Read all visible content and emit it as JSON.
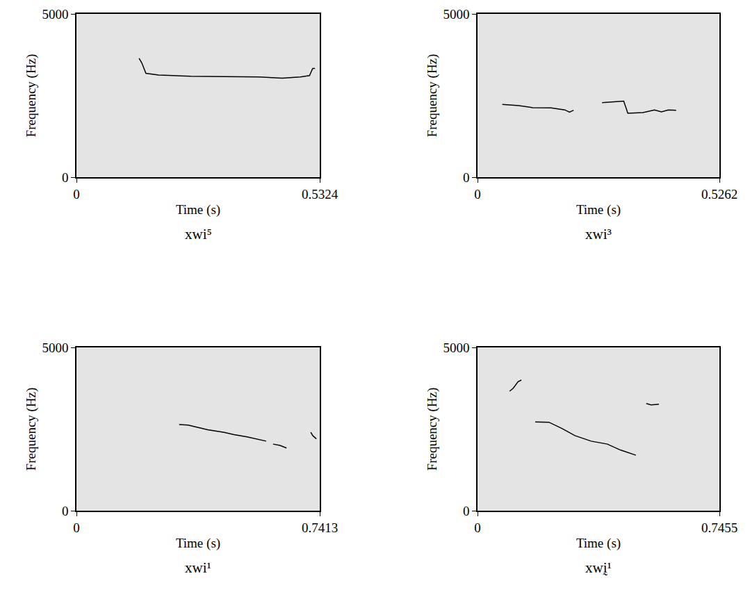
{
  "chart_data": [
    {
      "type": "line",
      "title": "xwi⁵",
      "x_label": "Time (s)",
      "y_label": "Frequency (Hz)",
      "xlim": [
        0,
        0.5324
      ],
      "ylim": [
        0,
        5000
      ],
      "xticks": [
        0,
        0.5324
      ],
      "yticks": [
        0,
        5000
      ],
      "color": "#000000",
      "x": [
        0.137,
        0.143,
        0.152,
        0.18,
        0.25,
        0.32,
        0.4,
        0.45,
        0.49,
        0.51,
        0.517,
        0.522
      ],
      "values": [
        3640,
        3500,
        3180,
        3130,
        3090,
        3080,
        3070,
        3030,
        3070,
        3110,
        3330,
        3330
      ]
    },
    {
      "type": "line",
      "title": "xwi³",
      "x_label": "Time (s)",
      "y_label": "Frequency (Hz)",
      "xlim": [
        0,
        0.5262
      ],
      "ylim": [
        0,
        5000
      ],
      "xticks": [
        0,
        0.5262
      ],
      "yticks": [
        0,
        5000
      ],
      "color": "#000000",
      "x": [
        0.054,
        0.09,
        0.12,
        0.16,
        0.19,
        0.2,
        0.209,
        0.24,
        0.271,
        0.3,
        0.318,
        0.327,
        0.36,
        0.385,
        0.4,
        0.415,
        0.432
      ],
      "values": [
        2230,
        2190,
        2130,
        2120,
        2060,
        1990,
        2050,
        null,
        2280,
        2320,
        2330,
        1960,
        1980,
        2060,
        2000,
        2060,
        2050
      ]
    },
    {
      "type": "line",
      "title": "xwi¹",
      "x_label": "Time (s)",
      "y_label": "Frequency (Hz)",
      "xlim": [
        0,
        0.7413
      ],
      "ylim": [
        0,
        5000
      ],
      "xticks": [
        0,
        0.7413
      ],
      "yticks": [
        0,
        5000
      ],
      "color": "#000000",
      "x": [
        0.313,
        0.34,
        0.4,
        0.45,
        0.48,
        0.52,
        0.578,
        0.588,
        0.599,
        0.62,
        0.64,
        0.68,
        0.714,
        0.72,
        0.731
      ],
      "values": [
        2640,
        2620,
        2480,
        2400,
        2330,
        2260,
        2130,
        null,
        2040,
        2000,
        1920,
        null,
        2400,
        2300,
        2200
      ]
    },
    {
      "type": "line",
      "title": "xwḭ¹",
      "x_label": "Time (s)",
      "y_label": "Frequency (Hz)",
      "xlim": [
        0,
        0.7455
      ],
      "ylim": [
        0,
        5000
      ],
      "xticks": [
        0,
        0.7455
      ],
      "yticks": [
        0,
        5000
      ],
      "color": "#000000",
      "x": [
        0.099,
        0.11,
        0.125,
        0.135,
        0.15,
        0.178,
        0.22,
        0.26,
        0.3,
        0.35,
        0.4,
        0.44,
        0.47,
        0.488,
        0.5,
        0.52,
        0.535,
        0.559
      ],
      "values": [
        3660,
        3750,
        3950,
        4000,
        null,
        2720,
        2710,
        2520,
        2300,
        2130,
        2040,
        1860,
        1760,
        1700,
        null,
        3280,
        3240,
        3260
      ]
    }
  ]
}
